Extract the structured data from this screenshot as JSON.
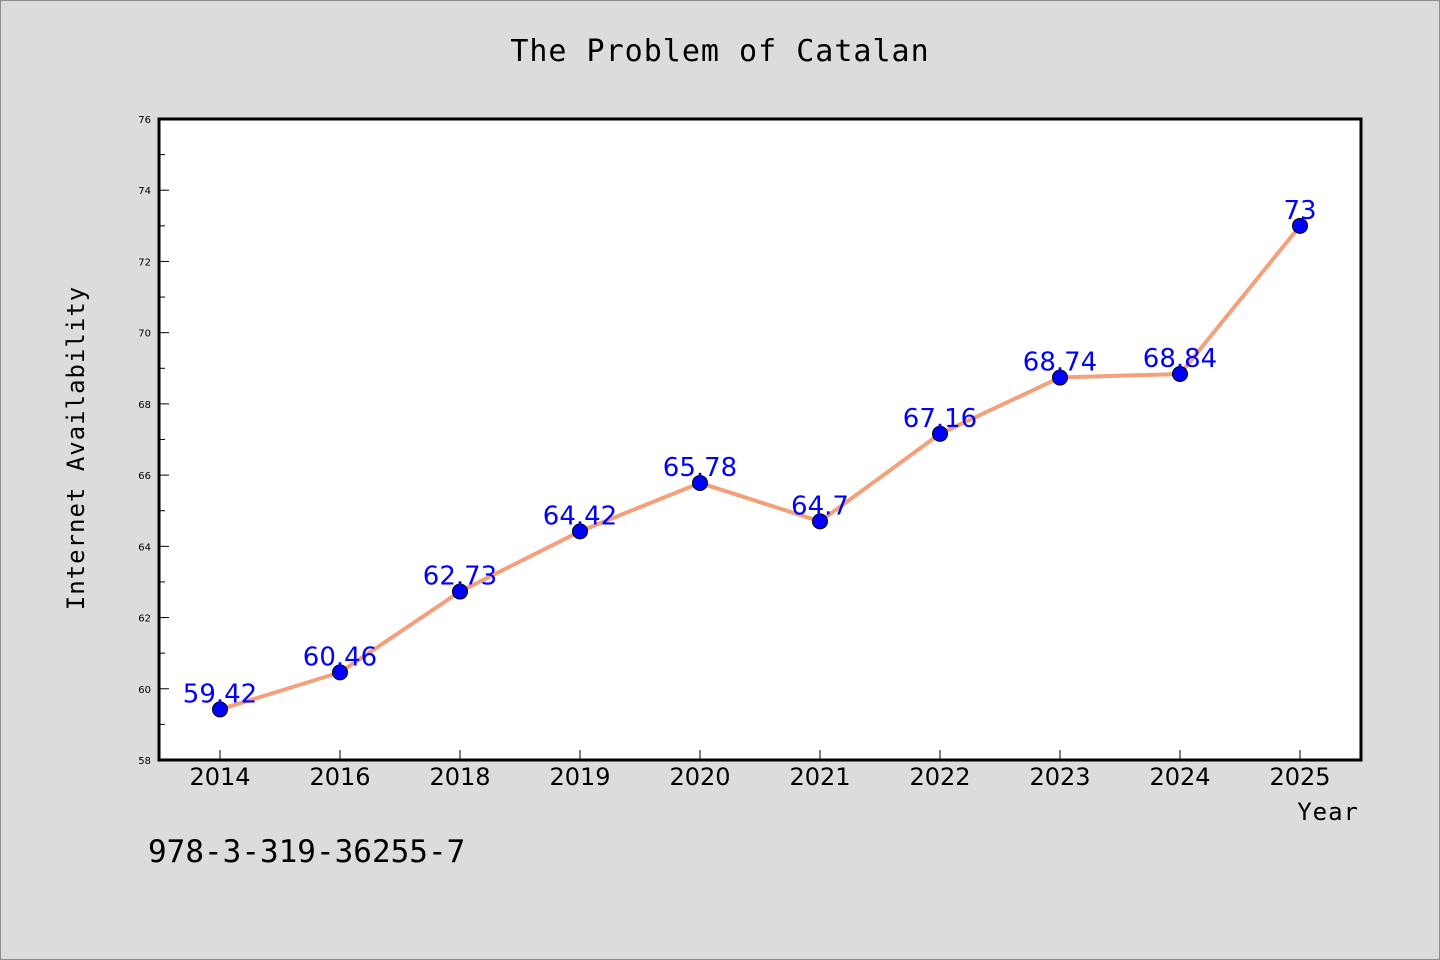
{
  "chart_data": {
    "type": "line",
    "title": "The Problem of Catalan",
    "xlabel": "Year",
    "ylabel": "Internet Availability",
    "categories": [
      "2014",
      "2016",
      "2018",
      "2019",
      "2020",
      "2021",
      "2022",
      "2023",
      "2024",
      "2025"
    ],
    "series": [
      {
        "values": [
          59.42,
          60.46,
          62.73,
          64.42,
          65.78,
          64.7,
          67.16,
          68.74,
          68.84,
          73
        ],
        "data_labels": [
          "59.42",
          "60.46",
          "62.73",
          "64.42",
          "65.78",
          "64.7",
          "67.16",
          "68.74",
          "68.84",
          "73"
        ],
        "line_color": "#f4a07a",
        "marker_color": "#0000ff"
      }
    ],
    "ylim": [
      58,
      76
    ],
    "yticks": [
      "58",
      "60",
      "62",
      "64",
      "66",
      "68",
      "70",
      "72",
      "74",
      "76"
    ],
    "grid": false,
    "legend": "none"
  },
  "footnote": "978-3-319-36255-7"
}
